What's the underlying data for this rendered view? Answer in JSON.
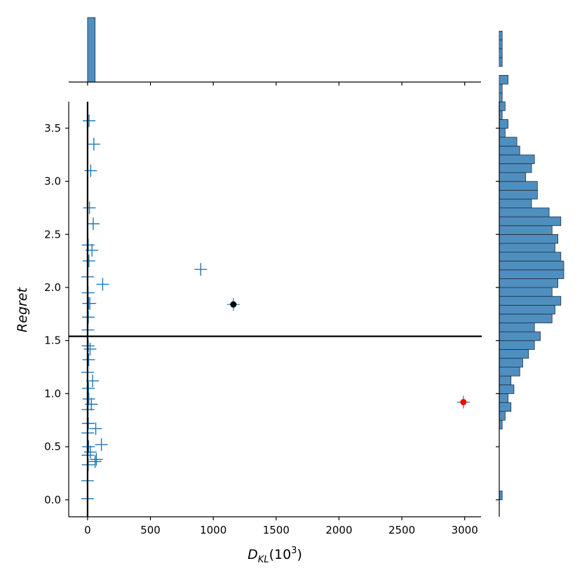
{
  "chart_data": {
    "type": "scatter",
    "title": "",
    "xlabel": "D",
    "xlabel_sub": "KL",
    "xlabel_suffix": "(10",
    "xlabel_sup": "3",
    "xlabel_close": ")",
    "ylabel": "Regret",
    "xlim": [
      -150,
      3130
    ],
    "ylim": [
      -0.16,
      3.75
    ],
    "xticks": [
      0,
      500,
      1000,
      1500,
      2000,
      2500,
      3000
    ],
    "yticks": [
      0.0,
      0.5,
      1.0,
      1.5,
      2.0,
      2.5,
      3.0,
      3.5
    ],
    "ytick_labels": [
      "0.0",
      "0.5",
      "1.0",
      "1.5",
      "2.0",
      "2.5",
      "3.0",
      "3.5"
    ],
    "marker_color": "#1f77b4",
    "hist_color": "#4f8fc0",
    "scatter": {
      "x": [
        0,
        0,
        5,
        3,
        8,
        2,
        6,
        4,
        10,
        7,
        1,
        9,
        5,
        3,
        6,
        8,
        4,
        2,
        11,
        5,
        60,
        110,
        65,
        30,
        40,
        20,
        120,
        900,
        35,
        45,
        15,
        25,
        50,
        12,
        18,
        70,
        22
      ],
      "y": [
        0.01,
        0.18,
        0.33,
        0.42,
        0.5,
        0.63,
        0.72,
        0.85,
        0.95,
        1.05,
        1.2,
        1.32,
        1.45,
        1.6,
        1.72,
        1.85,
        1.95,
        2.1,
        2.25,
        2.4,
        0.36,
        0.52,
        0.67,
        0.9,
        1.12,
        1.42,
        2.03,
        2.17,
        2.35,
        2.6,
        2.75,
        3.1,
        3.35,
        3.57,
        1.85,
        0.38,
        0.45
      ]
    },
    "highlight_points": [
      {
        "x": 1160,
        "y": 1.84,
        "color": "#000000"
      },
      {
        "x": 2990,
        "y": 0.92,
        "color": "#ff0000"
      }
    ],
    "vline_x": 0,
    "hline_y": 1.54,
    "marginal_x_hist": {
      "bin_start": 0,
      "bin_width": 60,
      "counts": [
        1
      ]
    },
    "marginal_y_hist": {
      "bin_start": 0.0,
      "bin_width": 0.0833,
      "counts": [
        1,
        0,
        0,
        0,
        0,
        0,
        0,
        0,
        1,
        2,
        4,
        3,
        5,
        4,
        7,
        8,
        10,
        12,
        14,
        12,
        18,
        19,
        21,
        18,
        20,
        22,
        22,
        21,
        19,
        20,
        18,
        21,
        17,
        11,
        13,
        13,
        9,
        11,
        12,
        7,
        6,
        2,
        3,
        1,
        2,
        1,
        1,
        3,
        0,
        1,
        1,
        1,
        1,
        0,
        0,
        0,
        0,
        0,
        0,
        0,
        0,
        0,
        0,
        0,
        0,
        0,
        0,
        0
      ]
    }
  }
}
